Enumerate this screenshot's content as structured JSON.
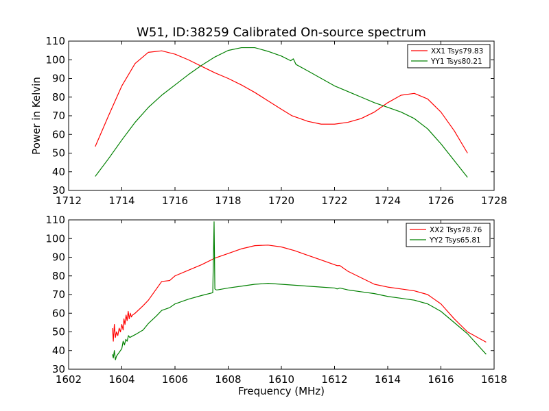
{
  "figure": {
    "title": "W51, ID:38259 Calibrated On-source spectrum",
    "ylabel": "Power in Kelvin",
    "xlabel": "Frequency (MHz)"
  },
  "chart_data": [
    {
      "type": "line",
      "name": "upper-panel",
      "title": "W51, ID:38259 Calibrated On-source spectrum",
      "ylabel": "Power in Kelvin",
      "xlabel": "",
      "xlim": [
        1712,
        1728
      ],
      "ylim": [
        30,
        110
      ],
      "xticks": [
        "1712",
        "1714",
        "1716",
        "1718",
        "1720",
        "1722",
        "1724",
        "1726",
        "1728"
      ],
      "yticks": [
        "30",
        "40",
        "50",
        "60",
        "70",
        "80",
        "90",
        "100",
        "110"
      ],
      "legend_position": "top-right",
      "grid": false,
      "series": [
        {
          "name": "XX1 Tsys79.83",
          "color": "#ff0000",
          "x": [
            1713.0,
            1713.5,
            1714.0,
            1714.5,
            1715.0,
            1715.5,
            1716.0,
            1716.5,
            1717.0,
            1717.5,
            1718.0,
            1718.5,
            1719.0,
            1719.5,
            1720.0,
            1720.4,
            1720.5,
            1721.0,
            1721.5,
            1722.0,
            1722.5,
            1723.0,
            1723.5,
            1724.0,
            1724.5,
            1725.0,
            1725.5,
            1726.0,
            1726.5,
            1727.0
          ],
          "y": [
            53.5,
            70,
            86,
            98,
            104,
            104.8,
            103,
            100,
            96.5,
            93,
            90,
            86.5,
            82.5,
            78,
            73.5,
            70,
            69.5,
            67,
            65.5,
            65.5,
            66.5,
            68.5,
            72,
            77,
            81,
            82,
            79,
            72,
            62,
            50
          ]
        },
        {
          "name": "YY1 Tsys80.21",
          "color": "#008000",
          "x": [
            1713.0,
            1713.5,
            1714.0,
            1714.5,
            1715.0,
            1715.5,
            1716.0,
            1716.5,
            1717.0,
            1717.5,
            1718.0,
            1718.5,
            1719.0,
            1719.5,
            1720.0,
            1720.35,
            1720.45,
            1720.55,
            1721.0,
            1721.5,
            1722.0,
            1722.5,
            1723.0,
            1723.5,
            1724.0,
            1724.5,
            1725.0,
            1725.5,
            1726.0,
            1726.5,
            1727.0
          ],
          "y": [
            37.5,
            47,
            57,
            66.5,
            74.5,
            81,
            86.5,
            92,
            97,
            101.5,
            105,
            106.5,
            106.5,
            104.5,
            102,
            99.5,
            100.5,
            97.5,
            94,
            90,
            86,
            83,
            80,
            77,
            74.5,
            72,
            68.5,
            63,
            55,
            46,
            37
          ]
        }
      ]
    },
    {
      "type": "line",
      "name": "lower-panel",
      "title": "",
      "ylabel": "",
      "xlabel": "Frequency (MHz)",
      "xlim": [
        1602,
        1618
      ],
      "ylim": [
        30,
        110
      ],
      "xticks": [
        "1602",
        "1604",
        "1606",
        "1608",
        "1610",
        "1612",
        "1614",
        "1616",
        "1618"
      ],
      "yticks": [
        "30",
        "40",
        "50",
        "60",
        "70",
        "80",
        "90",
        "100",
        "110"
      ],
      "legend_position": "top-right",
      "grid": false,
      "series": [
        {
          "name": "XX2 Tsys78.76",
          "color": "#ff0000",
          "x": [
            1603.65,
            1603.68,
            1603.72,
            1603.76,
            1603.8,
            1603.85,
            1603.9,
            1603.95,
            1604.0,
            1604.05,
            1604.08,
            1604.12,
            1604.16,
            1604.2,
            1604.24,
            1604.28,
            1604.32,
            1604.36,
            1604.4,
            1604.5,
            1604.8,
            1605.0,
            1605.3,
            1605.5,
            1605.8,
            1606.0,
            1606.5,
            1607.0,
            1607.5,
            1608.0,
            1608.5,
            1609.0,
            1609.5,
            1610.0,
            1610.5,
            1611.0,
            1611.5,
            1612.0,
            1612.1,
            1612.2,
            1612.5,
            1613.0,
            1613.5,
            1614.0,
            1614.5,
            1615.0,
            1615.5,
            1616.0,
            1616.5,
            1617.0,
            1617.7
          ],
          "y": [
            52,
            45,
            54,
            47,
            50,
            48,
            52,
            50,
            54,
            51,
            57,
            54,
            59,
            56,
            61,
            57,
            60,
            58,
            59,
            60,
            64,
            67,
            73,
            77,
            77.5,
            80,
            83,
            86,
            89.5,
            92,
            94.5,
            96.2,
            96.5,
            95.5,
            93.5,
            91,
            88.5,
            86,
            85.5,
            85.5,
            82.5,
            79,
            75.5,
            74,
            73,
            72,
            70,
            65,
            57,
            50,
            44.5
          ]
        },
        {
          "name": "YY2 Tsys65.81",
          "color": "#008000",
          "x": [
            1603.65,
            1603.68,
            1603.72,
            1603.76,
            1603.8,
            1603.9,
            1604.0,
            1604.05,
            1604.1,
            1604.15,
            1604.2,
            1604.25,
            1604.3,
            1604.5,
            1604.8,
            1605.0,
            1605.3,
            1605.5,
            1605.8,
            1606.0,
            1606.5,
            1607.0,
            1607.42,
            1607.47,
            1607.5,
            1607.55,
            1607.6,
            1608.0,
            1608.5,
            1609.0,
            1609.5,
            1610.0,
            1610.5,
            1611.0,
            1611.5,
            1612.0,
            1612.1,
            1612.2,
            1612.5,
            1613.0,
            1613.5,
            1614.0,
            1614.5,
            1615.0,
            1615.5,
            1616.0,
            1616.5,
            1617.0,
            1617.7
          ],
          "y": [
            38,
            36,
            40,
            35,
            37,
            39,
            41,
            45,
            43,
            46,
            45,
            48,
            47,
            48.5,
            51,
            54.5,
            58.5,
            61.5,
            63,
            65,
            67.5,
            69.5,
            71,
            109,
            73,
            72.5,
            72.5,
            73.5,
            74.5,
            75.5,
            76,
            75.5,
            75,
            74.5,
            74,
            73.5,
            73,
            73.5,
            72.5,
            71.5,
            70.5,
            69,
            68,
            67,
            65,
            61,
            55,
            49,
            38
          ]
        }
      ]
    }
  ]
}
